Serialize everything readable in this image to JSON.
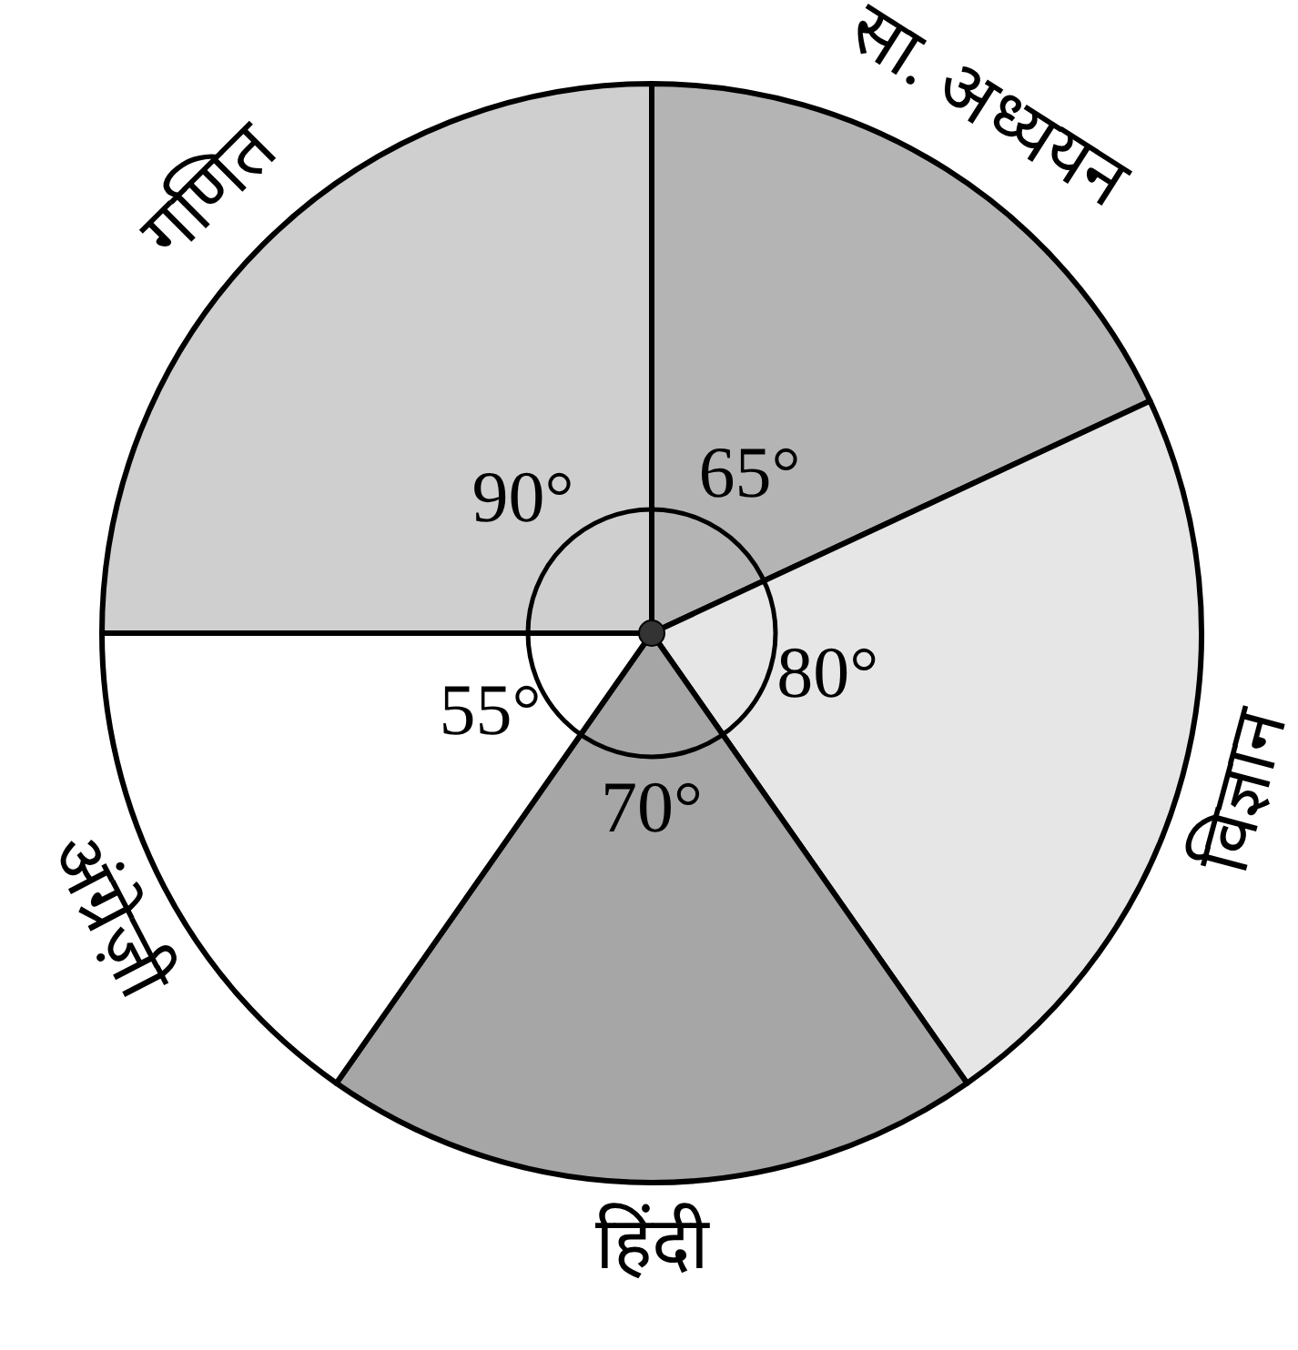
{
  "chart_data": {
    "type": "pie",
    "categories": [
      "सा. अध्ययन",
      "विज्ञान",
      "हिंदी",
      "अंग्रेज़ी",
      "गणित"
    ],
    "values": [
      65,
      80,
      70,
      55,
      90
    ],
    "value_labels": [
      "65°",
      "80°",
      "70°",
      "55°",
      "90°"
    ],
    "colors": [
      "#b4b4b4",
      "#e6e6e6",
      "#a6a6a6",
      "#ffffff",
      "#cfcfcf"
    ]
  }
}
